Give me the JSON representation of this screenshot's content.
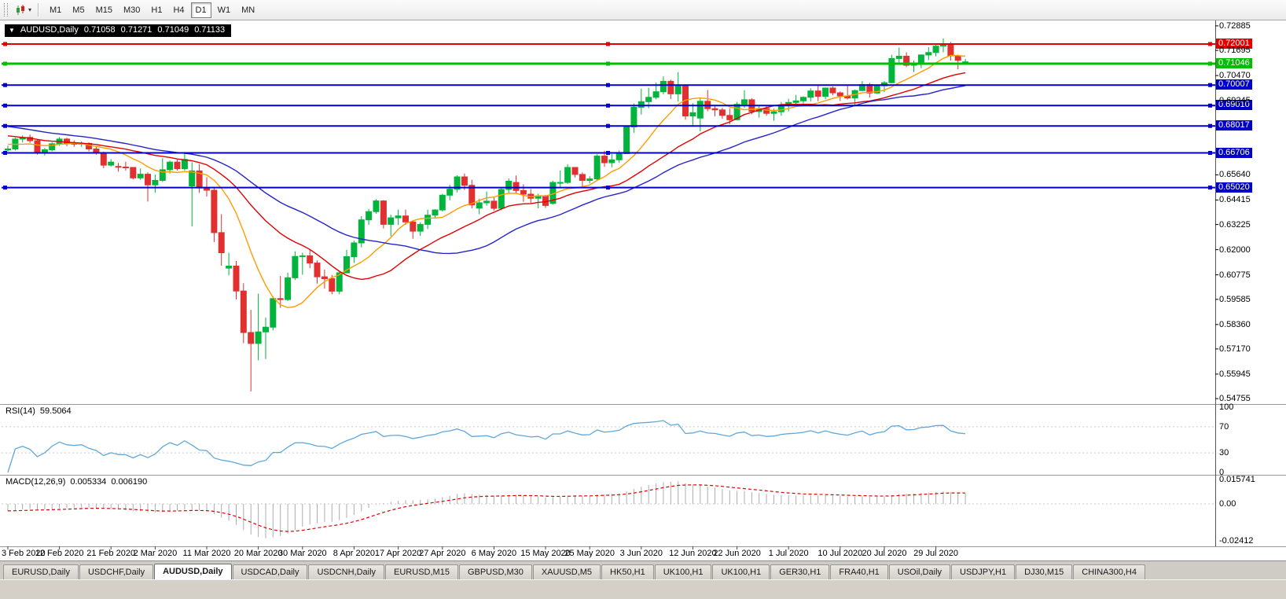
{
  "toolbar": {
    "timeframes": [
      "M1",
      "M5",
      "M15",
      "M30",
      "H1",
      "H4",
      "D1",
      "W1",
      "MN"
    ],
    "active_timeframe": "D1",
    "chart_type_caret": "▾"
  },
  "chart_header": {
    "collapse_icon": "▼",
    "symbol": "AUDUSD,Daily",
    "open": "0.71058",
    "high": "0.71271",
    "low": "0.71049",
    "close": "0.71133"
  },
  "price_axis": {
    "ticks": [
      "0.72885",
      "0.71695",
      "0.70470",
      "0.69245",
      "0.65640",
      "0.64415",
      "0.63225",
      "0.62000",
      "0.60775",
      "0.59585",
      "0.58360",
      "0.57170",
      "0.55945",
      "0.54755"
    ]
  },
  "horizontal_lines": [
    {
      "label": "0.72001",
      "price": 0.72001,
      "color": "#E00000",
      "width": 2
    },
    {
      "label": "0.71046",
      "price": 0.71046,
      "color": "#00BE00",
      "width": 3
    },
    {
      "label": "0.70007",
      "price": 0.70007,
      "color": "#0000C8",
      "width": 2
    },
    {
      "label": "0.69010",
      "price": 0.6901,
      "color": "#0000C8",
      "width": 2
    },
    {
      "label": "0.68017",
      "price": 0.68017,
      "color": "#0000C8",
      "width": 2
    },
    {
      "label": "0.66706",
      "price": 0.66706,
      "color": "#0000C8",
      "width": 2
    },
    {
      "label": "0.65020",
      "price": 0.6502,
      "color": "#0000C8",
      "width": 2
    }
  ],
  "rsi_pane": {
    "label": "RSI(14)",
    "value": "59.5064",
    "period": 14,
    "line_color": "#5FA8DC",
    "axis_labels": [
      {
        "text": "100",
        "value": 100
      },
      {
        "text": "70",
        "value": 70
      },
      {
        "text": "30",
        "value": 30
      },
      {
        "text": "0",
        "value": 0
      }
    ],
    "dotted_levels": [
      70,
      30
    ]
  },
  "macd_pane": {
    "label": "MACD(12,26,9)",
    "main_value": "0.005334",
    "signal_value": "0.006190",
    "fast": 12,
    "slow": 26,
    "signal_period": 9,
    "histogram_color": "#ACACAC",
    "signal_color": "#DC0000",
    "axis_labels": [
      {
        "text": "0.015741",
        "value": 0.015741
      },
      {
        "text": "0.00",
        "value": 0
      },
      {
        "text": "-0.02412",
        "value": -0.0241
      }
    ]
  },
  "tabs": [
    {
      "label": "EURUSD,Daily",
      "active": false
    },
    {
      "label": "USDCHF,Daily",
      "active": false
    },
    {
      "label": "AUDUSD,Daily",
      "active": true
    },
    {
      "label": "USDCAD,Daily",
      "active": false
    },
    {
      "label": "USDCNH,Daily",
      "active": false
    },
    {
      "label": "EURUSD,M15",
      "active": false
    },
    {
      "label": "GBPUSD,M30",
      "active": false
    },
    {
      "label": "XAUUSD,M5",
      "active": false
    },
    {
      "label": "HK50,H1",
      "active": false
    },
    {
      "label": "UK100,H1",
      "active": false
    },
    {
      "label": "UK100,H1",
      "active": false
    },
    {
      "label": "GER30,H1",
      "active": false
    },
    {
      "label": "FRA40,H1",
      "active": false
    },
    {
      "label": "USOil,Daily",
      "active": false
    },
    {
      "label": "USDJPY,H1",
      "active": false
    },
    {
      "label": "DJ30,M15",
      "active": false
    },
    {
      "label": "CHINA300,H4",
      "active": false
    }
  ],
  "chart_data": {
    "type": "candlestick",
    "symbol": "AUDUSD",
    "period": "Daily",
    "price_axis_visible_range": [
      0.5449,
      0.7315
    ],
    "bull_color": "#00B43C",
    "bear_color": "#E03030",
    "moving_averages": [
      {
        "period": 9,
        "color": "#FF9C00"
      },
      {
        "period": 21,
        "color": "#E00000"
      },
      {
        "period": 34,
        "color": "#2424CC"
      }
    ],
    "x_ticks": [
      {
        "index": 0,
        "text": "3 Feb 2020"
      },
      {
        "index": 7,
        "text": "12 Feb 2020"
      },
      {
        "index": 14,
        "text": "21 Feb 2020"
      },
      {
        "index": 20,
        "text": "2 Mar 2020"
      },
      {
        "index": 27,
        "text": "11 Mar 2020"
      },
      {
        "index": 34,
        "text": "20 Mar 2020"
      },
      {
        "index": 40,
        "text": "30 Mar 2020"
      },
      {
        "index": 47,
        "text": "8 Apr 2020"
      },
      {
        "index": 53,
        "text": "17 Apr 2020"
      },
      {
        "index": 59,
        "text": "27 Apr 2020"
      },
      {
        "index": 66,
        "text": "6 May 2020"
      },
      {
        "index": 73,
        "text": "15 May 2020"
      },
      {
        "index": 79,
        "text": "25 May 2020"
      },
      {
        "index": 86,
        "text": "3 Jun 2020"
      },
      {
        "index": 93,
        "text": "12 Jun 2020"
      },
      {
        "index": 99,
        "text": "22 Jun 2020"
      },
      {
        "index": 106,
        "text": "1 Jul 2020"
      },
      {
        "index": 113,
        "text": "10 Jul 2020"
      },
      {
        "index": 119,
        "text": "20 Jul 2020"
      },
      {
        "index": 126,
        "text": "29 Jul 2020"
      }
    ],
    "candles": [
      [
        0.6685,
        0.6706,
        0.6678,
        0.669
      ],
      [
        0.669,
        0.6745,
        0.6682,
        0.6738
      ],
      [
        0.6738,
        0.6756,
        0.6722,
        0.6746
      ],
      [
        0.6746,
        0.676,
        0.672,
        0.673
      ],
      [
        0.673,
        0.6737,
        0.6662,
        0.6671
      ],
      [
        0.6671,
        0.6695,
        0.6658,
        0.6686
      ],
      [
        0.6686,
        0.6723,
        0.6678,
        0.6715
      ],
      [
        0.6715,
        0.6748,
        0.6705,
        0.6738
      ],
      [
        0.6738,
        0.6745,
        0.6703,
        0.6718
      ],
      [
        0.6718,
        0.6732,
        0.67,
        0.6713
      ],
      [
        0.6713,
        0.6727,
        0.67,
        0.6717
      ],
      [
        0.6717,
        0.6722,
        0.6678,
        0.669
      ],
      [
        0.669,
        0.6705,
        0.6662,
        0.667
      ],
      [
        0.667,
        0.6677,
        0.6596,
        0.6611
      ],
      [
        0.6611,
        0.664,
        0.6604,
        0.6626
      ],
      [
        0.6605,
        0.6622,
        0.658,
        0.6602
      ],
      [
        0.6602,
        0.6628,
        0.6585,
        0.66
      ],
      [
        0.66,
        0.6602,
        0.6542,
        0.6549
      ],
      [
        0.6549,
        0.6595,
        0.654,
        0.6567
      ],
      [
        0.6567,
        0.6576,
        0.6434,
        0.6515
      ],
      [
        0.6515,
        0.6565,
        0.6477,
        0.6537
      ],
      [
        0.6537,
        0.6645,
        0.653,
        0.6589
      ],
      [
        0.6589,
        0.6633,
        0.657,
        0.6626
      ],
      [
        0.6626,
        0.6637,
        0.6585,
        0.6594
      ],
      [
        0.6594,
        0.667,
        0.6585,
        0.6639
      ],
      [
        0.651,
        0.6625,
        0.6313,
        0.6583
      ],
      [
        0.6583,
        0.6617,
        0.6476,
        0.65
      ],
      [
        0.65,
        0.6552,
        0.6459,
        0.6489
      ],
      [
        0.6489,
        0.6506,
        0.6237,
        0.6283
      ],
      [
        0.6283,
        0.6373,
        0.6122,
        0.6185
      ],
      [
        0.611,
        0.6185,
        0.6075,
        0.612
      ],
      [
        0.612,
        0.6145,
        0.5958,
        0.5999
      ],
      [
        0.5999,
        0.6037,
        0.5745,
        0.5797
      ],
      [
        0.5797,
        0.5907,
        0.551,
        0.5744
      ],
      [
        0.5744,
        0.5986,
        0.5662,
        0.58
      ],
      [
        0.58,
        0.587,
        0.5668,
        0.5823
      ],
      [
        0.5823,
        0.5973,
        0.5807,
        0.5962
      ],
      [
        0.5962,
        0.6072,
        0.5917,
        0.5957
      ],
      [
        0.5957,
        0.6088,
        0.595,
        0.6063
      ],
      [
        0.6063,
        0.6192,
        0.6052,
        0.6167
      ],
      [
        0.6167,
        0.6185,
        0.6078,
        0.617
      ],
      [
        0.617,
        0.6201,
        0.611,
        0.6135
      ],
      [
        0.6135,
        0.6148,
        0.6035,
        0.6068
      ],
      [
        0.6068,
        0.6103,
        0.6011,
        0.6059
      ],
      [
        0.6059,
        0.6077,
        0.5983,
        0.5998
      ],
      [
        0.5998,
        0.6092,
        0.5983,
        0.6087
      ],
      [
        0.6087,
        0.6199,
        0.6085,
        0.6166
      ],
      [
        0.6166,
        0.6244,
        0.6135,
        0.6233
      ],
      [
        0.6233,
        0.6363,
        0.6211,
        0.6345
      ],
      [
        0.6345,
        0.6398,
        0.632,
        0.6385
      ],
      [
        0.6385,
        0.6445,
        0.6375,
        0.6437
      ],
      [
        0.6437,
        0.6441,
        0.6303,
        0.6323
      ],
      [
        0.6323,
        0.637,
        0.6265,
        0.6355
      ],
      [
        0.6355,
        0.6395,
        0.632,
        0.6364
      ],
      [
        0.6364,
        0.6395,
        0.6321,
        0.6335
      ],
      [
        0.6335,
        0.6339,
        0.6253,
        0.629
      ],
      [
        0.629,
        0.6334,
        0.6266,
        0.6323
      ],
      [
        0.6323,
        0.6394,
        0.63,
        0.6368
      ],
      [
        0.6368,
        0.6397,
        0.6353,
        0.6393
      ],
      [
        0.6393,
        0.6472,
        0.6386,
        0.6465
      ],
      [
        0.6465,
        0.6516,
        0.644,
        0.6494
      ],
      [
        0.6494,
        0.6562,
        0.6478,
        0.6554
      ],
      [
        0.6554,
        0.657,
        0.649,
        0.6513
      ],
      [
        0.6513,
        0.654,
        0.6401,
        0.6418
      ],
      [
        0.6402,
        0.6448,
        0.6372,
        0.6428
      ],
      [
        0.6428,
        0.6483,
        0.6414,
        0.6436
      ],
      [
        0.6436,
        0.6453,
        0.639,
        0.6401
      ],
      [
        0.6401,
        0.6498,
        0.6392,
        0.6493
      ],
      [
        0.6493,
        0.6547,
        0.6473,
        0.6533
      ],
      [
        0.6527,
        0.6561,
        0.6475,
        0.6488
      ],
      [
        0.6488,
        0.6518,
        0.6433,
        0.647
      ],
      [
        0.647,
        0.6495,
        0.6424,
        0.645
      ],
      [
        0.645,
        0.6472,
        0.6402,
        0.6462
      ],
      [
        0.6462,
        0.6467,
        0.6403,
        0.6415
      ],
      [
        0.6425,
        0.6535,
        0.6419,
        0.6527
      ],
      [
        0.6527,
        0.6585,
        0.6506,
        0.6527
      ],
      [
        0.6527,
        0.6616,
        0.652,
        0.66
      ],
      [
        0.66,
        0.6601,
        0.6551,
        0.6566
      ],
      [
        0.6566,
        0.6576,
        0.6506,
        0.6537
      ],
      [
        0.6537,
        0.6557,
        0.6522,
        0.6544
      ],
      [
        0.6544,
        0.6664,
        0.6539,
        0.6655
      ],
      [
        0.6655,
        0.6681,
        0.6603,
        0.6623
      ],
      [
        0.6623,
        0.6665,
        0.6601,
        0.6637
      ],
      [
        0.6637,
        0.6683,
        0.6622,
        0.6667
      ],
      [
        0.6667,
        0.6802,
        0.6665,
        0.6797
      ],
      [
        0.6797,
        0.6911,
        0.6769,
        0.6893
      ],
      [
        0.6893,
        0.6983,
        0.6857,
        0.692
      ],
      [
        0.692,
        0.6988,
        0.6888,
        0.6941
      ],
      [
        0.6941,
        0.7013,
        0.6932,
        0.6968
      ],
      [
        0.6968,
        0.7043,
        0.6956,
        0.7019
      ],
      [
        0.7019,
        0.7027,
        0.6933,
        0.6958
      ],
      [
        0.6958,
        0.7064,
        0.6921,
        0.6999
      ],
      [
        0.6999,
        0.7004,
        0.6832,
        0.685
      ],
      [
        0.685,
        0.6912,
        0.68,
        0.6866
      ],
      [
        0.684,
        0.6936,
        0.6776,
        0.6922
      ],
      [
        0.6922,
        0.6977,
        0.6873,
        0.6886
      ],
      [
        0.6886,
        0.6905,
        0.6849,
        0.688
      ],
      [
        0.688,
        0.689,
        0.6837,
        0.6853
      ],
      [
        0.6853,
        0.6886,
        0.681,
        0.6832
      ],
      [
        0.6832,
        0.6919,
        0.6829,
        0.6907
      ],
      [
        0.6907,
        0.6976,
        0.689,
        0.6929
      ],
      [
        0.6929,
        0.6937,
        0.6859,
        0.6872
      ],
      [
        0.6872,
        0.6902,
        0.6842,
        0.6886
      ],
      [
        0.6886,
        0.6898,
        0.6851,
        0.6863
      ],
      [
        0.6863,
        0.6886,
        0.6827,
        0.6871
      ],
      [
        0.6871,
        0.6919,
        0.6852,
        0.6903
      ],
      [
        0.6903,
        0.6934,
        0.6873,
        0.6916
      ],
      [
        0.6916,
        0.6953,
        0.6904,
        0.6924
      ],
      [
        0.6924,
        0.6946,
        0.691,
        0.6941
      ],
      [
        0.6941,
        0.6985,
        0.6921,
        0.6972
      ],
      [
        0.6972,
        0.6998,
        0.6922,
        0.6946
      ],
      [
        0.6946,
        0.6989,
        0.6932,
        0.6986
      ],
      [
        0.6986,
        0.6994,
        0.6951,
        0.6963
      ],
      [
        0.6963,
        0.697,
        0.6923,
        0.6948
      ],
      [
        0.6948,
        0.7,
        0.6931,
        0.6938
      ],
      [
        0.6938,
        0.6978,
        0.6902,
        0.6974
      ],
      [
        0.6974,
        0.702,
        0.6971,
        0.7003
      ],
      [
        0.7003,
        0.7011,
        0.694,
        0.6962
      ],
      [
        0.6962,
        0.7004,
        0.6958,
        0.6997
      ],
      [
        0.6997,
        0.702,
        0.6967,
        0.7012
      ],
      [
        0.7012,
        0.7148,
        0.701,
        0.713
      ],
      [
        0.713,
        0.7183,
        0.7111,
        0.7141
      ],
      [
        0.7141,
        0.716,
        0.7088,
        0.7097
      ],
      [
        0.7097,
        0.712,
        0.7064,
        0.7103
      ],
      [
        0.7103,
        0.715,
        0.7083,
        0.7147
      ],
      [
        0.7147,
        0.7185,
        0.7122,
        0.7159
      ],
      [
        0.7159,
        0.7198,
        0.714,
        0.719
      ],
      [
        0.719,
        0.7228,
        0.716,
        0.7195
      ],
      [
        0.7195,
        0.7209,
        0.712,
        0.7143
      ],
      [
        0.7143,
        0.7149,
        0.7077,
        0.7121
      ],
      [
        0.71058,
        0.71271,
        0.71049,
        0.71133
      ]
    ]
  }
}
